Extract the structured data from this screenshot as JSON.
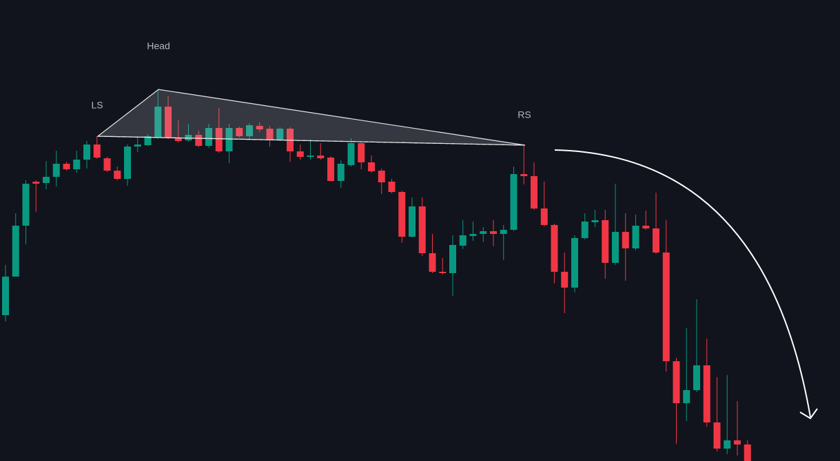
{
  "chart_data": {
    "type": "candlestick",
    "annotations": [
      "LS",
      "Head",
      "RS"
    ],
    "open": [
      212,
      268,
      342,
      406,
      404,
      413,
      432,
      424,
      438,
      460,
      440,
      422,
      410,
      457,
      459,
      471,
      515,
      470,
      466,
      474,
      458,
      484,
      450,
      484,
      472,
      487,
      483,
      466,
      483,
      450,
      442,
      444,
      441,
      407,
      430,
      462,
      434,
      422,
      406,
      391,
      326,
      370,
      302,
      275,
      273,
      313,
      327,
      330,
      334,
      330,
      336,
      417,
      414,
      367,
      343,
      275,
      252,
      324,
      347,
      350,
      288,
      333,
      309,
      342,
      338,
      303,
      145,
      84,
      103,
      139,
      56,
      18,
      30,
      24
    ],
    "high": [
      285,
      360,
      408,
      408,
      436,
      451,
      435,
      451,
      465,
      472,
      442,
      428,
      460,
      470,
      475,
      540,
      530,
      495,
      490,
      480,
      490,
      513,
      490,
      486,
      491,
      492,
      487,
      485,
      485,
      460,
      467,
      462,
      443,
      437,
      469,
      463,
      444,
      425,
      410,
      393,
      383,
      383,
      330,
      295,
      328,
      350,
      348,
      340,
      350,
      343,
      428,
      459,
      434,
      406,
      345,
      303,
      328,
      360,
      365,
      365,
      403,
      360,
      358,
      364,
      390,
      350,
      150,
      193,
      235,
      178,
      122,
      125,
      87,
      30
    ],
    "low": [
      203,
      268,
      315,
      362,
      395,
      399,
      422,
      419,
      425,
      439,
      420,
      408,
      400,
      449,
      458,
      468,
      468,
      463,
      464,
      456,
      455,
      448,
      433,
      470,
      467,
      478,
      457,
      465,
      435,
      438,
      438,
      438,
      406,
      397,
      428,
      424,
      419,
      388,
      389,
      317,
      325,
      298,
      273,
      271,
      240,
      308,
      320,
      318,
      312,
      292,
      334,
      402,
      365,
      341,
      258,
      215,
      245,
      322,
      340,
      265,
      285,
      262,
      306,
      336,
      301,
      130,
      25,
      58,
      100,
      50,
      14,
      10,
      8,
      0
    ],
    "close": [
      268,
      342,
      403,
      403,
      413,
      432,
      424,
      438,
      460,
      441,
      422,
      410,
      457,
      460,
      472,
      515,
      470,
      465,
      474,
      458,
      484,
      450,
      484,
      472,
      488,
      482,
      466,
      483,
      450,
      442,
      444,
      440,
      407,
      432,
      462,
      434,
      421,
      405,
      391,
      326,
      370,
      302,
      275,
      273,
      314,
      328,
      330,
      334,
      330,
      336,
      417,
      414,
      367,
      343,
      275,
      252,
      324,
      348,
      350,
      288,
      333,
      309,
      342,
      338,
      303,
      145,
      84,
      103,
      139,
      56,
      18,
      30,
      24,
      0
    ],
    "up_color": "#089981",
    "down_color": "#f23645",
    "ylim": [
      0,
      670
    ]
  }
}
